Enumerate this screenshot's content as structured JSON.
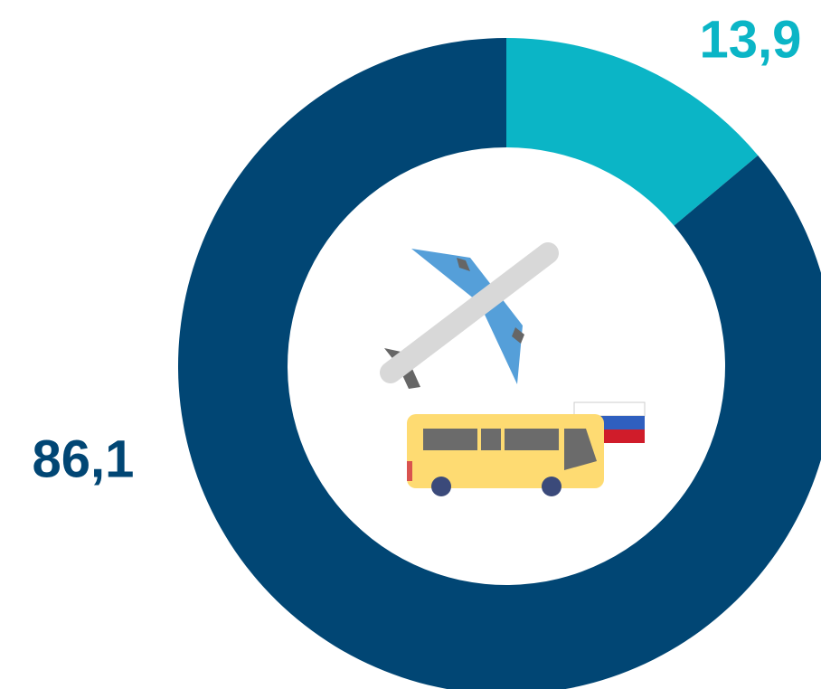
{
  "chart_data": {
    "type": "donut",
    "values": [
      13.9,
      86.1
    ],
    "value_labels": [
      "13,9",
      "86,1"
    ],
    "colors": [
      "#0bb5c6",
      "#014674"
    ]
  }
}
